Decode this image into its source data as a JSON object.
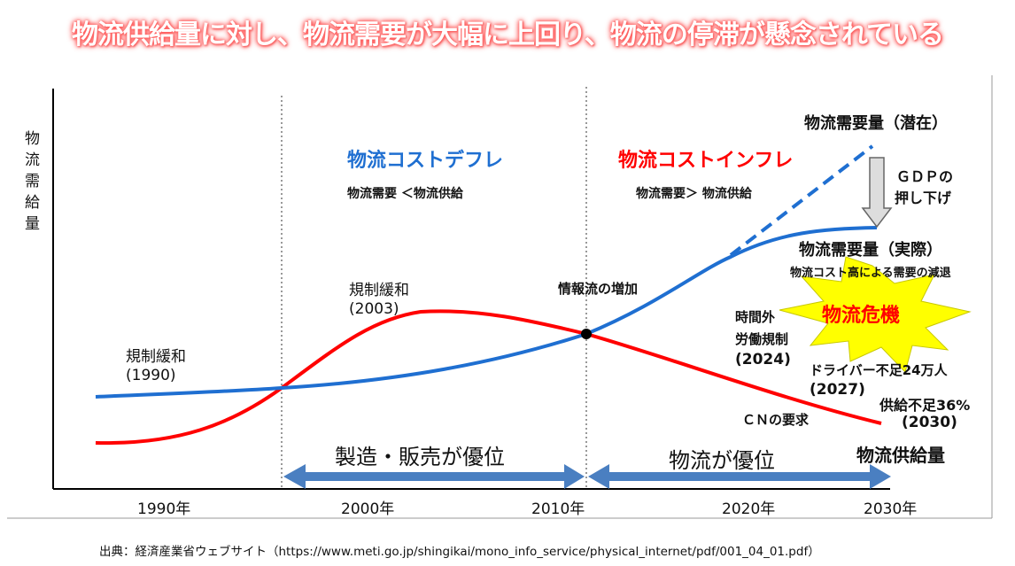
{
  "title": "物流供給量に対し、物流需要が大幅に上回り、物流の停滞が懸念されている",
  "y_axis_label": "物流需給量",
  "x_ticks": [
    "1990年",
    "2000年",
    "2010年",
    "2020年",
    "2030年"
  ],
  "labels": {
    "deflation": "物流コストデフレ",
    "deflation_sub": "物流需要 ＜物流供給",
    "inflation": "物流コストインフレ",
    "inflation_sub": "物流需要＞ 物流供給",
    "potential_demand": "物流需要量（潜在）",
    "gdp_line1": "ＧＤＰの",
    "gdp_line2": "押し下げ",
    "actual_demand": "物流需要量（実際）",
    "demand_decline": "物流コスト高による需要の減退",
    "crisis": "物流危機",
    "dereg1990_a": "規制緩和",
    "dereg1990_b": "(1990)",
    "dereg2003_a": "規制緩和",
    "dereg2003_b": "(2003)",
    "info_flow": "情報流の増加",
    "overtime_a": "時間外",
    "overtime_b": "労働規制",
    "overtime_c": "(2024)",
    "driver_a": "ドライバー不足24万人",
    "driver_b": "(2027)",
    "supply_a": "供給不足36%",
    "supply_b": "(2030)",
    "cn": "ＣＮの要求",
    "supply": "物流供給量",
    "mfg_dominant": "製造・販売が優位",
    "logistics_dominant": "物流が優位"
  },
  "source": "出典：経済産業省ウェブサイト（https://www.meti.go.jp/shingikai/mono_info_service/physical_internet/pdf/001_04_01.pdf）",
  "colors": {
    "demand": "#1f6fd1",
    "supply": "#ff0000",
    "arrow": "#4a7fc1",
    "crisis_bg": "#ffff00"
  }
}
